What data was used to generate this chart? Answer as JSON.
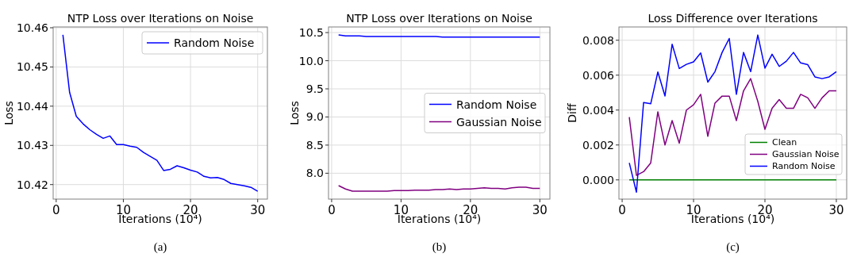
{
  "chart_data": [
    {
      "type": "line",
      "title": "NTP Loss over Iterations on Noise",
      "xlabel": "Iterations (10⁴)",
      "ylabel": "Loss",
      "annotations": [
        "(a)"
      ],
      "grid": true,
      "legend": "top right",
      "x": [
        1,
        2,
        3,
        4,
        5,
        6,
        7,
        8,
        9,
        10,
        11,
        12,
        13,
        14,
        15,
        16,
        17,
        18,
        19,
        20,
        21,
        22,
        23,
        24,
        25,
        26,
        27,
        28,
        29,
        30
      ],
      "xlim": [
        -0.45,
        31.45
      ],
      "xticks": [
        0,
        10,
        20,
        30
      ],
      "ylim": [
        10.4163,
        10.4602
      ],
      "yticks": [
        10.42,
        10.43,
        10.44,
        10.45,
        10.46
      ],
      "series": [
        {
          "name": "Random Noise",
          "color": "#0000ff",
          "values": [
            10.4582,
            10.4435,
            10.4374,
            10.4355,
            10.434,
            10.4328,
            10.4318,
            10.4324,
            10.4302,
            10.4302,
            10.4298,
            10.4295,
            10.4282,
            10.4272,
            10.4262,
            10.4236,
            10.4239,
            10.4248,
            10.4243,
            10.4237,
            10.4232,
            10.4221,
            10.4217,
            10.4218,
            10.4213,
            10.4203,
            10.42,
            10.4197,
            10.4193,
            10.4183
          ]
        }
      ]
    },
    {
      "type": "line",
      "title": "NTP Loss over Iterations on Noise",
      "xlabel": "Iterations (10⁴)",
      "ylabel": "Loss",
      "annotations": [
        "(b)"
      ],
      "grid": true,
      "legend": "right",
      "x": [
        1,
        2,
        3,
        4,
        5,
        6,
        7,
        8,
        9,
        10,
        11,
        12,
        13,
        14,
        15,
        16,
        17,
        18,
        19,
        20,
        21,
        22,
        23,
        24,
        25,
        26,
        27,
        28,
        29,
        30
      ],
      "xlim": [
        -0.45,
        31.45
      ],
      "xticks": [
        0,
        10,
        20,
        30
      ],
      "ylim": [
        7.54,
        10.6
      ],
      "yticks": [
        {
          "value": 8,
          "label": "8.0"
        },
        {
          "value": 8.5,
          "label": "8.5"
        },
        {
          "value": 9,
          "label": "9.0"
        },
        {
          "value": 9.5,
          "label": "9.5"
        },
        {
          "value": 10,
          "label": "10.0"
        },
        {
          "value": 10.5,
          "label": "10.5"
        }
      ],
      "series": [
        {
          "name": "Random Noise",
          "color": "#0000ff",
          "values": [
            10.46,
            10.44,
            10.44,
            10.44,
            10.43,
            10.43,
            10.43,
            10.43,
            10.43,
            10.43,
            10.43,
            10.43,
            10.43,
            10.43,
            10.43,
            10.42,
            10.42,
            10.42,
            10.42,
            10.42,
            10.42,
            10.42,
            10.42,
            10.42,
            10.42,
            10.42,
            10.42,
            10.42,
            10.42,
            10.42
          ]
        },
        {
          "name": "Gaussian Noise",
          "color": "#800080",
          "values": [
            7.78,
            7.72,
            7.68,
            7.68,
            7.68,
            7.68,
            7.68,
            7.68,
            7.69,
            7.69,
            7.69,
            7.7,
            7.7,
            7.7,
            7.71,
            7.71,
            7.72,
            7.71,
            7.72,
            7.72,
            7.73,
            7.74,
            7.73,
            7.73,
            7.72,
            7.74,
            7.75,
            7.75,
            7.73,
            7.73
          ]
        }
      ]
    },
    {
      "type": "line",
      "title": "Loss Difference over Iterations",
      "xlabel": "Iterations (10⁴)",
      "ylabel": "Diff",
      "annotations": [
        "(c)"
      ],
      "grid": true,
      "legend": "bottom right",
      "x": [
        1,
        2,
        3,
        4,
        5,
        6,
        7,
        8,
        9,
        10,
        11,
        12,
        13,
        14,
        15,
        16,
        17,
        18,
        19,
        20,
        21,
        22,
        23,
        24,
        25,
        26,
        27,
        28,
        29,
        30
      ],
      "xlim": [
        -0.45,
        31.45
      ],
      "xticks": [
        0,
        10,
        20,
        30
      ],
      "ylim": [
        -0.0011,
        0.00876
      ],
      "yticks": [
        {
          "value": 0,
          "label": "0.000"
        },
        {
          "value": 0.002,
          "label": "0.002"
        },
        {
          "value": 0.004,
          "label": "0.004"
        },
        {
          "value": 0.006,
          "label": "0.006"
        },
        {
          "value": 0.008,
          "label": "0.008"
        }
      ],
      "series": [
        {
          "name": "Clean",
          "color": "#008000",
          "values": [
            0,
            0,
            0,
            0,
            0,
            0,
            0,
            0,
            0,
            0,
            0,
            0,
            0,
            0,
            0,
            0,
            0,
            0,
            0,
            0,
            0,
            0,
            0,
            0,
            0,
            0,
            0,
            0,
            0,
            0
          ]
        },
        {
          "name": "Gaussian Noise",
          "color": "#800080",
          "values": [
            0.0036,
            0.00026,
            0.00047,
            0.00097,
            0.0039,
            0.002,
            0.0034,
            0.0021,
            0.004,
            0.0043,
            0.0049,
            0.0025,
            0.0044,
            0.0048,
            0.0048,
            0.0034,
            0.0051,
            0.0058,
            0.0045,
            0.0029,
            0.0041,
            0.0046,
            0.0041,
            0.0041,
            0.0049,
            0.0047,
            0.0041,
            0.0047,
            0.0051,
            0.0051
          ]
        },
        {
          "name": "Random Noise",
          "color": "#0000ff",
          "values": [
            0.00097,
            -0.0007,
            0.00443,
            0.00436,
            0.00618,
            0.00481,
            0.00777,
            0.00638,
            0.00662,
            0.00676,
            0.00727,
            0.0056,
            0.0062,
            0.0073,
            0.0081,
            0.0049,
            0.0073,
            0.0062,
            0.0083,
            0.0064,
            0.0072,
            0.0065,
            0.0068,
            0.0073,
            0.0067,
            0.0066,
            0.0059,
            0.0058,
            0.0059,
            0.0062
          ]
        }
      ]
    }
  ]
}
